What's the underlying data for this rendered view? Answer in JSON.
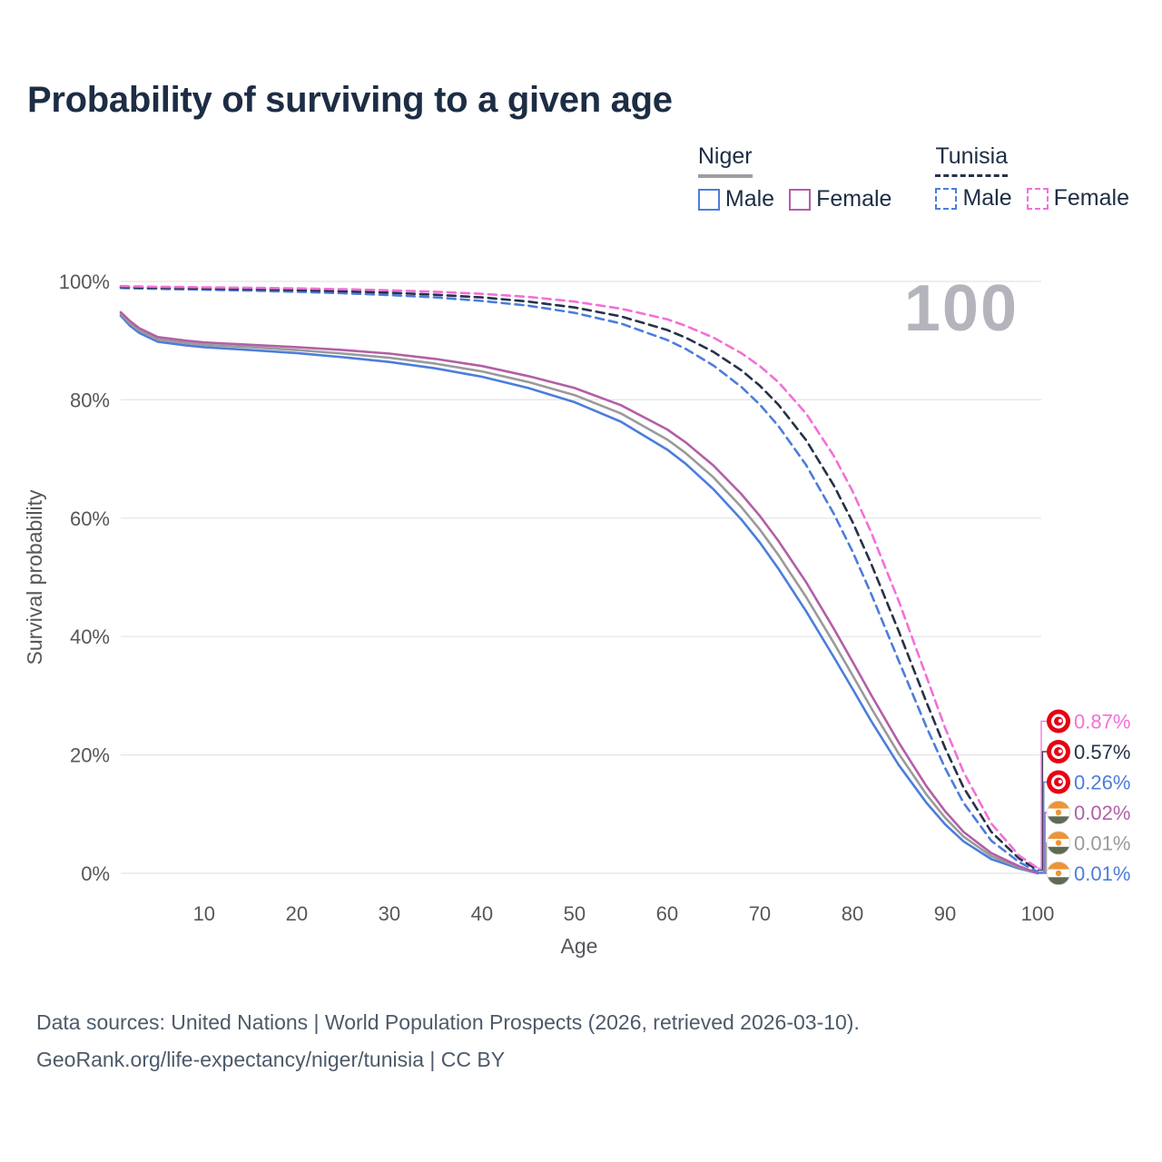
{
  "title": "Probability of surviving to a given age",
  "legend": {
    "groups": [
      {
        "name": "Niger",
        "style": "solid",
        "underline_color": "#9e9e9e",
        "items": [
          {
            "label": "Male",
            "color": "#4C7DDB"
          },
          {
            "label": "Female",
            "color": "#B25FA6"
          }
        ]
      },
      {
        "name": "Tunisia",
        "style": "dashed",
        "underline_color": "#273248",
        "items": [
          {
            "label": "Male",
            "color": "#4C7DDB"
          },
          {
            "label": "Female",
            "color": "#F36FD8"
          }
        ]
      }
    ]
  },
  "chart_data": {
    "type": "line",
    "title": "Probability of surviving to a given age",
    "xlabel": "Age",
    "ylabel": "Survival probability",
    "xlim": [
      1,
      100
    ],
    "ylim": [
      0,
      100
    ],
    "x_ticks": [
      10,
      20,
      30,
      40,
      50,
      60,
      70,
      80,
      90,
      100
    ],
    "y_ticks": [
      0,
      20,
      40,
      60,
      80,
      100
    ],
    "y_tick_suffix": "%",
    "grid": "horizontal",
    "legend_position": "top-right",
    "watermark": "100",
    "x": [
      1,
      2,
      3,
      5,
      8,
      10,
      15,
      20,
      25,
      30,
      35,
      40,
      45,
      50,
      55,
      60,
      62,
      65,
      68,
      70,
      72,
      75,
      78,
      80,
      82,
      85,
      88,
      90,
      92,
      95,
      98,
      100
    ],
    "series": [
      {
        "name": "Niger Male",
        "country": "Niger",
        "color": "#4C7DDB",
        "dash": "solid",
        "flag": "niger",
        "values": [
          94.2,
          92.5,
          91.3,
          89.8,
          89.2,
          88.9,
          88.4,
          87.9,
          87.2,
          86.4,
          85.3,
          83.9,
          82.0,
          79.6,
          76.3,
          71.6,
          69.2,
          64.9,
          59.8,
          55.9,
          51.5,
          44.3,
          36.5,
          31.2,
          25.8,
          18.3,
          11.9,
          8.3,
          5.4,
          2.4,
          0.8,
          0.01
        ]
      },
      {
        "name": "Niger",
        "country": "Niger",
        "color": "#9A9A9A",
        "dash": "solid",
        "flag": "niger",
        "values": [
          94.5,
          92.9,
          91.7,
          90.2,
          89.6,
          89.3,
          88.9,
          88.4,
          87.8,
          87.1,
          86.1,
          84.8,
          83.0,
          80.8,
          77.7,
          73.3,
          71.0,
          66.9,
          61.9,
          58.1,
          53.8,
          46.7,
          38.9,
          33.5,
          28.0,
          20.2,
          13.3,
          9.4,
          6.2,
          2.9,
          1.0,
          0.01
        ]
      },
      {
        "name": "Niger Female",
        "country": "Niger",
        "color": "#B25FA6",
        "dash": "solid",
        "flag": "niger",
        "values": [
          94.8,
          93.3,
          92.1,
          90.6,
          90.0,
          89.7,
          89.3,
          88.9,
          88.4,
          87.8,
          86.9,
          85.7,
          84.0,
          82.0,
          79.1,
          75.0,
          72.8,
          68.9,
          64.1,
          60.4,
          56.2,
          49.2,
          41.3,
          35.8,
          30.2,
          22.1,
          14.7,
          10.5,
          7.0,
          3.4,
          1.2,
          0.02
        ]
      },
      {
        "name": "Tunisia Male",
        "country": "Tunisia",
        "color": "#4C7DDB",
        "dash": "dashed",
        "flag": "tunisia",
        "values": [
          98.9,
          98.85,
          98.8,
          98.75,
          98.65,
          98.6,
          98.45,
          98.25,
          98.0,
          97.7,
          97.3,
          96.7,
          95.9,
          94.7,
          92.9,
          90.1,
          88.6,
          85.8,
          82.2,
          79.2,
          75.6,
          69.0,
          60.7,
          54.4,
          47.3,
          35.9,
          24.7,
          17.8,
          11.9,
          5.5,
          1.9,
          0.26
        ]
      },
      {
        "name": "Tunisia",
        "country": "Tunisia",
        "color": "#273248",
        "dash": "dashed",
        "flag": "tunisia",
        "values": [
          99.05,
          99.0,
          98.97,
          98.92,
          98.85,
          98.8,
          98.7,
          98.55,
          98.35,
          98.1,
          97.75,
          97.3,
          96.6,
          95.6,
          94.1,
          91.8,
          90.5,
          88.1,
          85.0,
          82.4,
          79.2,
          73.2,
          65.5,
          59.4,
          52.4,
          40.9,
          28.9,
          21.2,
          14.5,
          7.0,
          2.5,
          0.57
        ]
      },
      {
        "name": "Tunisia Female",
        "country": "Tunisia",
        "color": "#F36FD8",
        "dash": "dashed",
        "flag": "tunisia",
        "values": [
          99.2,
          99.17,
          99.14,
          99.1,
          99.05,
          99.0,
          98.92,
          98.82,
          98.68,
          98.5,
          98.25,
          97.9,
          97.4,
          96.6,
          95.4,
          93.6,
          92.5,
          90.5,
          87.9,
          85.7,
          83.0,
          77.7,
          70.5,
          64.6,
          57.7,
          46.0,
          33.2,
          24.6,
          17.1,
          8.4,
          3.0,
          0.87
        ]
      }
    ],
    "end_labels": [
      {
        "text": "0.87%",
        "series_index": 5
      },
      {
        "text": "0.57%",
        "series_index": 4
      },
      {
        "text": "0.26%",
        "series_index": 3
      },
      {
        "text": "0.02%",
        "series_index": 2
      },
      {
        "text": "0.01%",
        "series_index": 1
      },
      {
        "text": "0.01%",
        "series_index": 0
      }
    ],
    "flags": {
      "tunisia": {
        "red": "#E70013",
        "white": "#FFFFFF"
      },
      "niger": {
        "orange": "#ED9435",
        "white": "#FFFFFF",
        "green": "#5E6A55"
      }
    }
  },
  "footer": {
    "line1": "Data sources: United Nations | World Population Prospects (2026, retrieved 2026-03-10).",
    "line2": "GeoRank.org/life-expectancy/niger/tunisia | CC BY"
  }
}
